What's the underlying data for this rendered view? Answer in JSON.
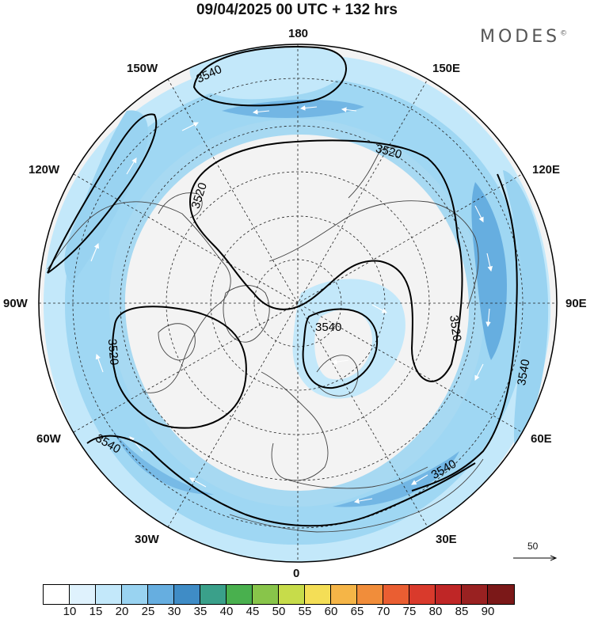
{
  "title": "09/04/2025  00 UTC  + 132 hrs",
  "logo": "MODES",
  "logo_mark": "©",
  "longitude_labels": {
    "top": "180",
    "bottom": "0",
    "left": "90W",
    "right": "90E",
    "nw1": "150W",
    "nw2": "120W",
    "ne1": "150E",
    "ne2": "120E",
    "sw1": "60W",
    "sw2": "30W",
    "se1": "60E",
    "se2": "30E"
  },
  "contour_labels": [
    "3540",
    "3520",
    "3520",
    "3520",
    "3540",
    "3520",
    "3540",
    "3540",
    "3540"
  ],
  "reference_vector": {
    "label": "50"
  },
  "colorbar": {
    "ticks": [
      "10",
      "15",
      "20",
      "25",
      "30",
      "35",
      "40",
      "45",
      "50",
      "55",
      "60",
      "65",
      "70",
      "75",
      "80",
      "85",
      "90"
    ],
    "colors": [
      "#ffffff",
      "#dff2fd",
      "#c3e8fa",
      "#99d3f1",
      "#66aee0",
      "#3f8cc6",
      "#3aa08a",
      "#49b04e",
      "#88c54a",
      "#c7dc4a",
      "#f4de56",
      "#f5b547",
      "#f18d3a",
      "#ea5e32",
      "#d93a2c",
      "#bf2626",
      "#992121",
      "#7b1818"
    ]
  },
  "map_colors": {
    "land": "#f3f3f3",
    "coast": "#444444",
    "contour": "#000000",
    "grid": "#222222"
  }
}
